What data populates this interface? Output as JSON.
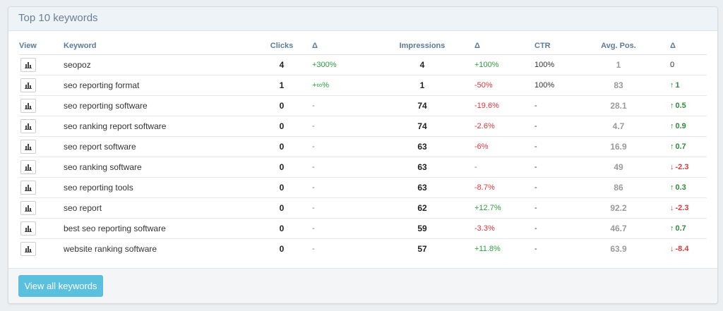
{
  "panel": {
    "title": "Top 10 keywords",
    "view_all_label": "View all keywords"
  },
  "table": {
    "headers": {
      "view": "View",
      "keyword": "Keyword",
      "clicks": "Clicks",
      "clicks_delta": "Δ",
      "impressions": "Impressions",
      "impressions_delta": "Δ",
      "ctr": "CTR",
      "avg_pos": "Avg. Pos.",
      "pos_delta": "Δ"
    },
    "rows": [
      {
        "keyword": "seopoz",
        "clicks": "4",
        "clicks_delta": "+300%",
        "clicks_delta_dir": "up",
        "impressions": "4",
        "impressions_delta": "+100%",
        "impressions_delta_dir": "up",
        "ctr": "100%",
        "avg_pos": "1",
        "pos_delta": "0",
        "pos_delta_dir": "none"
      },
      {
        "keyword": "seo reporting format",
        "clicks": "1",
        "clicks_delta": "+∞%",
        "clicks_delta_dir": "up",
        "impressions": "1",
        "impressions_delta": "-50%",
        "impressions_delta_dir": "down",
        "ctr": "100%",
        "avg_pos": "83",
        "pos_delta": "1",
        "pos_delta_dir": "up"
      },
      {
        "keyword": "seo reporting software",
        "clicks": "0",
        "clicks_delta": "-",
        "clicks_delta_dir": "none",
        "impressions": "74",
        "impressions_delta": "-19.6%",
        "impressions_delta_dir": "down",
        "ctr": "-",
        "avg_pos": "28.1",
        "pos_delta": "0.5",
        "pos_delta_dir": "up"
      },
      {
        "keyword": "seo ranking report software",
        "clicks": "0",
        "clicks_delta": "-",
        "clicks_delta_dir": "none",
        "impressions": "74",
        "impressions_delta": "-2.6%",
        "impressions_delta_dir": "down",
        "ctr": "-",
        "avg_pos": "4.7",
        "pos_delta": "0.9",
        "pos_delta_dir": "up"
      },
      {
        "keyword": "seo report software",
        "clicks": "0",
        "clicks_delta": "-",
        "clicks_delta_dir": "none",
        "impressions": "63",
        "impressions_delta": "-6%",
        "impressions_delta_dir": "down",
        "ctr": "-",
        "avg_pos": "16.9",
        "pos_delta": "0.7",
        "pos_delta_dir": "up"
      },
      {
        "keyword": "seo ranking software",
        "clicks": "0",
        "clicks_delta": "-",
        "clicks_delta_dir": "none",
        "impressions": "63",
        "impressions_delta": "-",
        "impressions_delta_dir": "none",
        "ctr": "-",
        "avg_pos": "49",
        "pos_delta": "-2.3",
        "pos_delta_dir": "down"
      },
      {
        "keyword": "seo reporting tools",
        "clicks": "0",
        "clicks_delta": "-",
        "clicks_delta_dir": "none",
        "impressions": "63",
        "impressions_delta": "-8.7%",
        "impressions_delta_dir": "down",
        "ctr": "-",
        "avg_pos": "86",
        "pos_delta": "0.3",
        "pos_delta_dir": "up"
      },
      {
        "keyword": "seo report",
        "clicks": "0",
        "clicks_delta": "-",
        "clicks_delta_dir": "none",
        "impressions": "62",
        "impressions_delta": "+12.7%",
        "impressions_delta_dir": "up",
        "ctr": "-",
        "avg_pos": "92.2",
        "pos_delta": "-2.3",
        "pos_delta_dir": "down"
      },
      {
        "keyword": "best seo reporting software",
        "clicks": "0",
        "clicks_delta": "-",
        "clicks_delta_dir": "none",
        "impressions": "59",
        "impressions_delta": "-3.3%",
        "impressions_delta_dir": "down",
        "ctr": "-",
        "avg_pos": "46.7",
        "pos_delta": "0.7",
        "pos_delta_dir": "up"
      },
      {
        "keyword": "website ranking software",
        "clicks": "0",
        "clicks_delta": "-",
        "clicks_delta_dir": "none",
        "impressions": "57",
        "impressions_delta": "+11.8%",
        "impressions_delta_dir": "up",
        "ctr": "-",
        "avg_pos": "63.9",
        "pos_delta": "-8.4",
        "pos_delta_dir": "down"
      }
    ]
  },
  "icons": {
    "view_row": "bar-chart-icon",
    "trend_up": "arrow-up-icon",
    "trend_down": "arrow-down-icon"
  },
  "colors": {
    "positive": "#2e9d3f",
    "negative": "#e0343b",
    "button": "#5bc0de",
    "header_text": "#5b7c9a"
  }
}
